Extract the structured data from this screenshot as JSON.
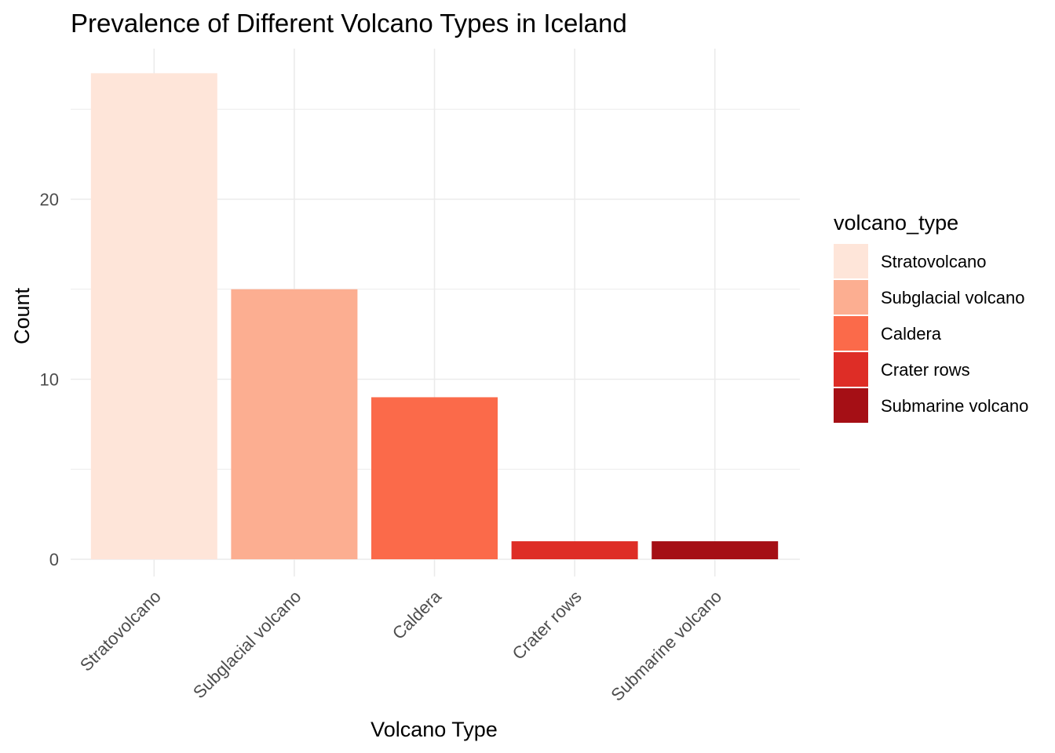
{
  "chart_data": {
    "type": "bar",
    "title": "Prevalence of Different Volcano Types in Iceland",
    "xlabel": "Volcano Type",
    "ylabel": "Count",
    "categories": [
      "Stratovolcano",
      "Subglacial volcano",
      "Caldera",
      "Crater rows",
      "Submarine volcano"
    ],
    "values": [
      27,
      15,
      9,
      1,
      1
    ],
    "colors": [
      "#fee5d9",
      "#fcae91",
      "#fb6a4a",
      "#de2d26",
      "#a50f15"
    ],
    "y_ticks": [
      0,
      10,
      20
    ],
    "ylim": [
      0,
      27
    ],
    "grid": true,
    "legend": {
      "title": "volcano_type",
      "position": "right",
      "entries": [
        "Stratovolcano",
        "Subglacial volcano",
        "Caldera",
        "Crater rows",
        "Submarine volcano"
      ]
    }
  }
}
